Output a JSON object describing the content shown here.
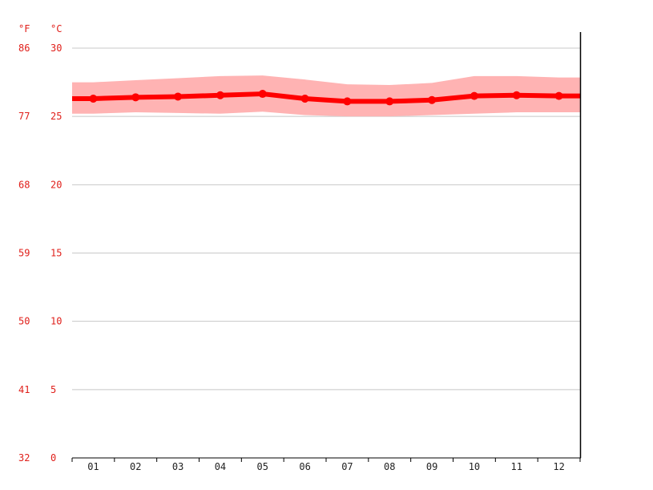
{
  "chart_data": {
    "type": "line",
    "title": "",
    "xlabel": "",
    "ylabel": "",
    "categories": [
      "01",
      "02",
      "03",
      "04",
      "05",
      "06",
      "07",
      "08",
      "09",
      "10",
      "11",
      "12"
    ],
    "units": {
      "fahrenheit": "°F",
      "celsius": "°C"
    },
    "y_ticks_celsius": [
      "0",
      "5",
      "10",
      "15",
      "20",
      "25",
      "30"
    ],
    "y_ticks_fahrenheit": [
      "32",
      "41",
      "50",
      "59",
      "68",
      "77",
      "86"
    ],
    "ylim": [
      0,
      30
    ],
    "grid": true,
    "series": [
      {
        "role": "mean",
        "color": "#ff0000",
        "values": [
          26.3,
          26.4,
          26.45,
          26.55,
          26.65,
          26.3,
          26.1,
          26.1,
          26.2,
          26.5,
          26.55,
          26.5
        ]
      }
    ],
    "band": {
      "color": "#ffb3b3",
      "upper": [
        27.5,
        27.65,
        27.8,
        27.95,
        28.0,
        27.7,
        27.35,
        27.3,
        27.45,
        27.95,
        27.95,
        27.85
      ],
      "lower": [
        25.2,
        25.3,
        25.25,
        25.2,
        25.35,
        25.1,
        25.0,
        25.0,
        25.1,
        25.2,
        25.3,
        25.3
      ]
    },
    "colors": {
      "axis_label": "#e0201b",
      "month_label": "#222222",
      "grid": "#c8c8c8",
      "axis": "#000000"
    }
  }
}
